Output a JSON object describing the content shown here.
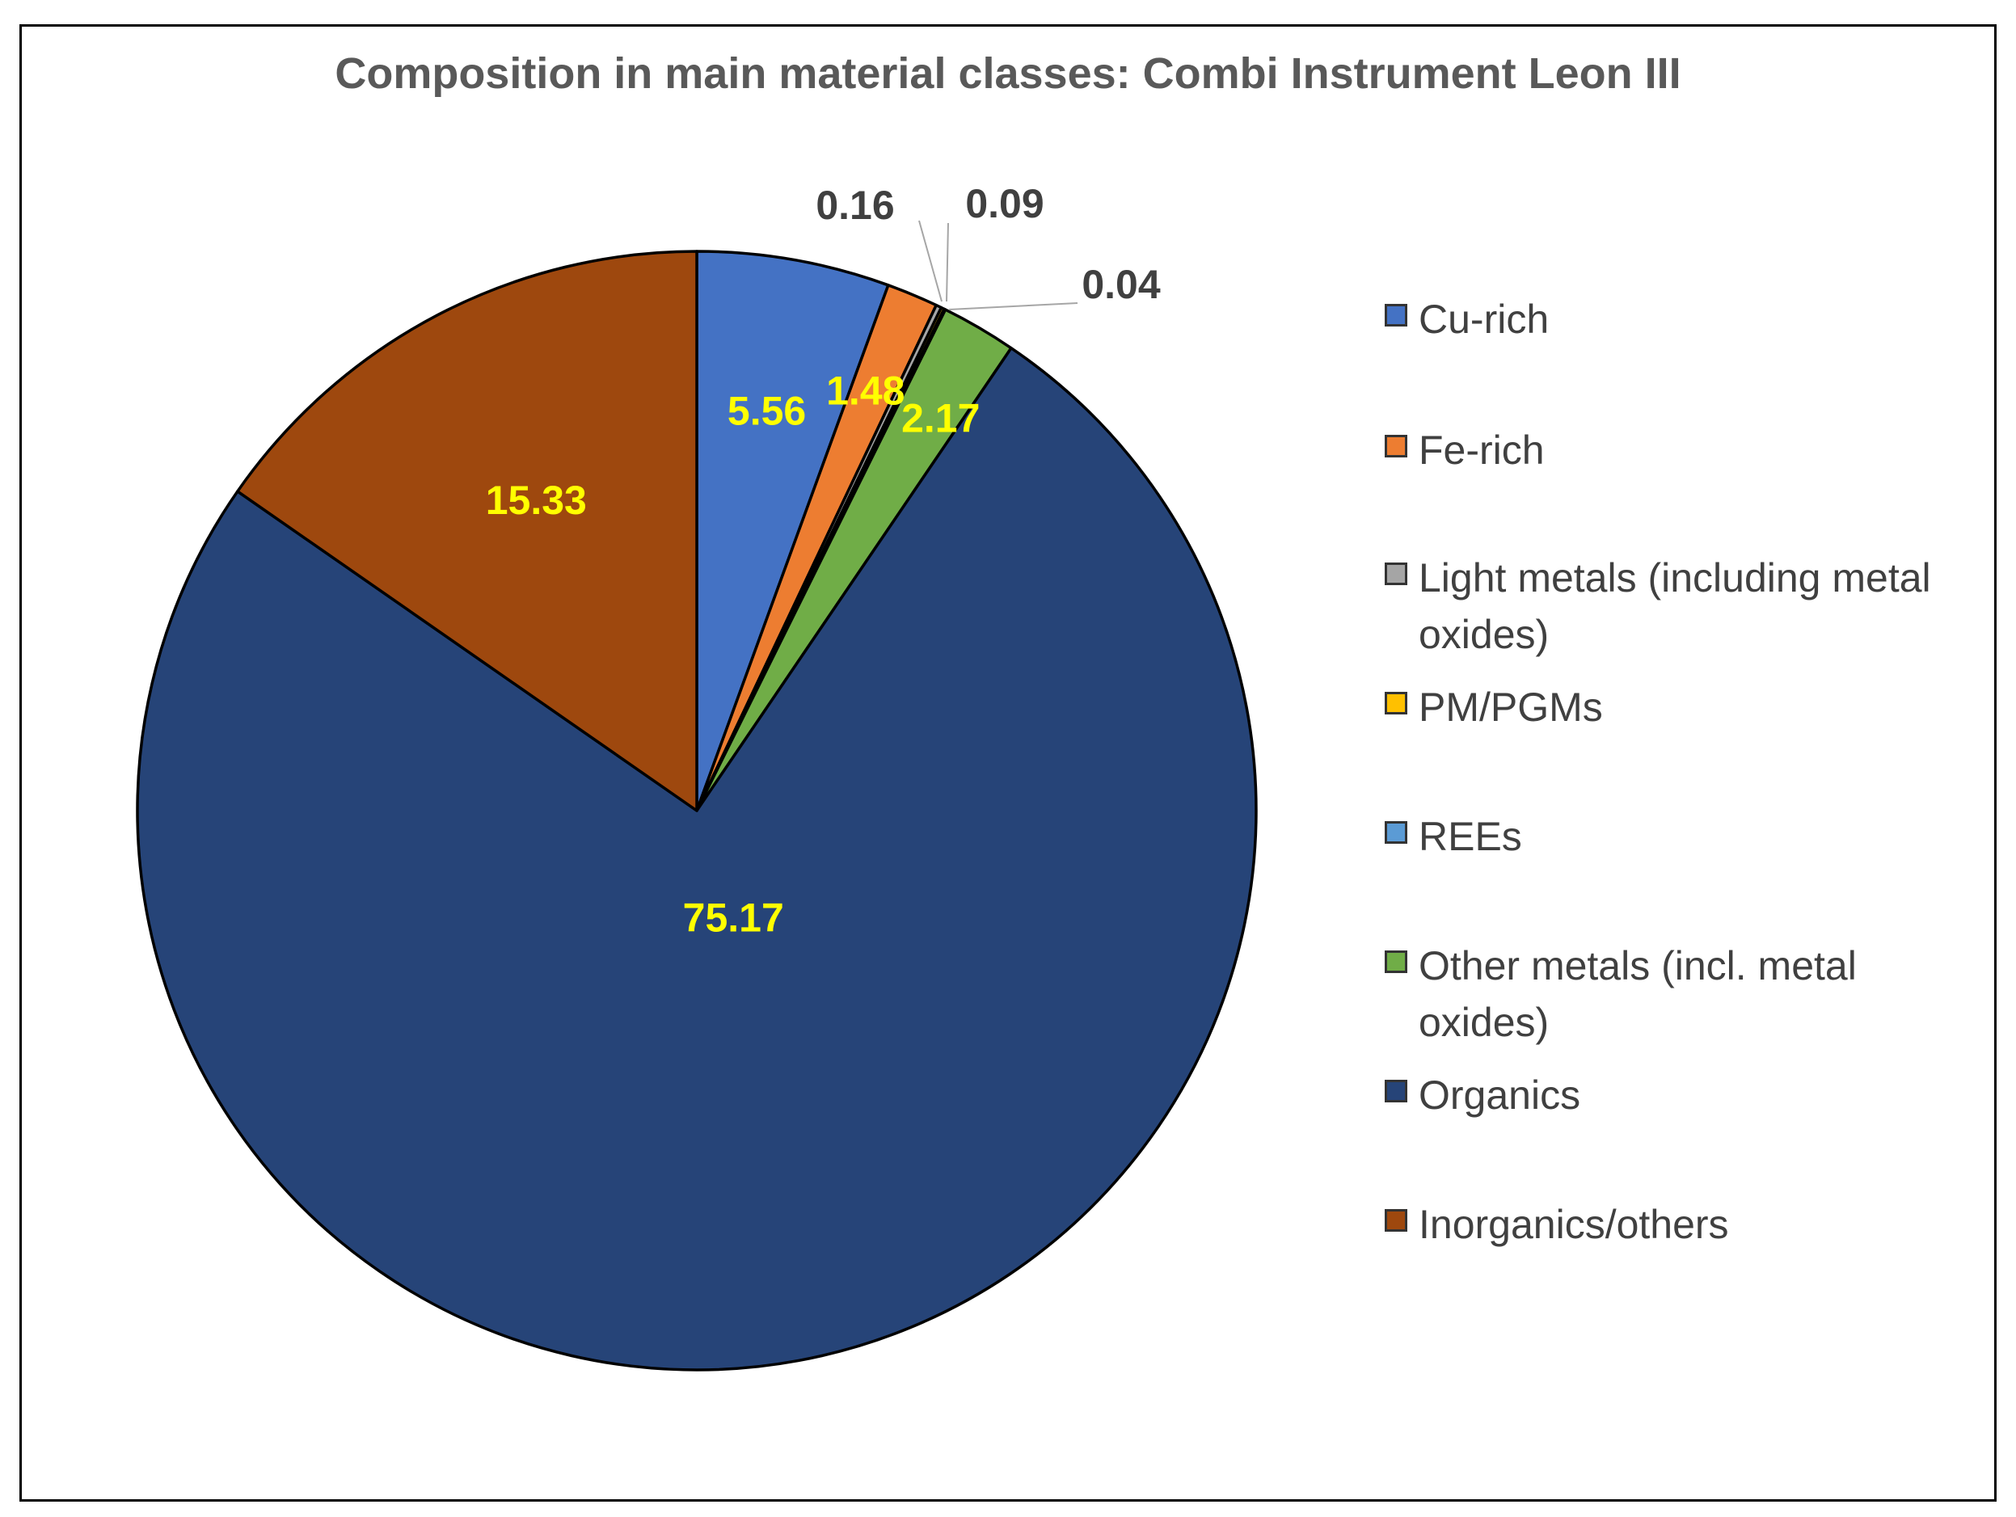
{
  "chart_data": {
    "type": "pie",
    "title": "Composition in main material classes: Combi Instrument Leon III",
    "legend_position": "right",
    "slices": [
      {
        "name": "Cu-rich",
        "value": 5.56,
        "label": "5.56",
        "color": "#4472C4",
        "label_color": "#FFFF00"
      },
      {
        "name": "Fe-rich",
        "value": 1.48,
        "label": "1.48",
        "color": "#ED7D31",
        "label_color": "#FFFF00"
      },
      {
        "name": "Light metals (including metal oxides)",
        "value": 0.16,
        "label": "0.16",
        "color": "#A5A5A5",
        "label_color": "#404040"
      },
      {
        "name": "PM/PGMs",
        "value": 0.09,
        "label": "0.09",
        "color": "#FFC000",
        "label_color": "#404040"
      },
      {
        "name": "REEs",
        "value": 0.04,
        "label": "0.04",
        "color": "#5B9BD5",
        "label_color": "#404040"
      },
      {
        "name": "Other metals (incl. metal oxides)",
        "value": 2.17,
        "label": "2.17",
        "color": "#70AD47",
        "label_color": "#FFFF00"
      },
      {
        "name": "Organics",
        "value": 75.17,
        "label": "75.17",
        "color": "#264478",
        "label_color": "#FFFF00"
      },
      {
        "name": "Inorganics/others",
        "value": 15.33,
        "label": "15.33",
        "color": "#9E480E",
        "label_color": "#FFFF00"
      }
    ]
  }
}
